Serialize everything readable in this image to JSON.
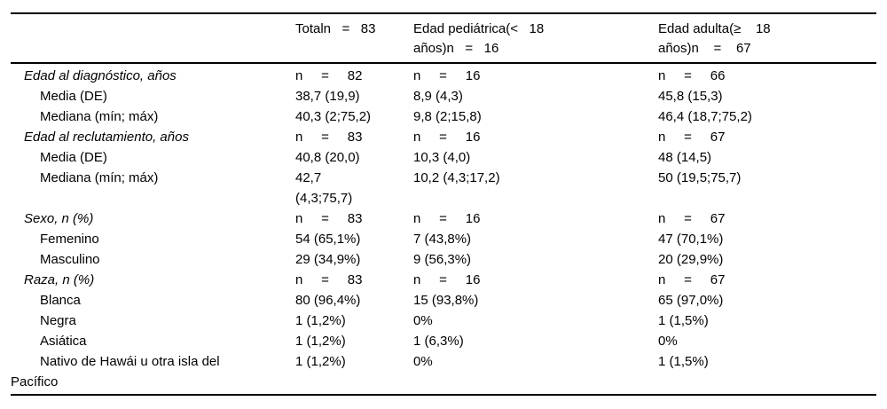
{
  "table": {
    "colors": {
      "text": "#000000",
      "rule": "#000000",
      "background": "#ffffff"
    },
    "columns": [
      "",
      "Totaln   =   83",
      "Edad pediátrica(<   18\naños)n   =   16",
      "Edad adulta(≥    18\naños)n    =    67"
    ],
    "rows": [
      {
        "style": "group",
        "label": "Edad al diagnóstico, años",
        "total": "n     =     82",
        "pediatric": "n     =     16",
        "adult": "n     =     66"
      },
      {
        "style": "sub",
        "label": "Media (DE)",
        "total": "38,7 (19,9)",
        "pediatric": "8,9 (4,3)",
        "adult": "45,8 (15,3)"
      },
      {
        "style": "sub",
        "label": "Mediana (mín; máx)",
        "total": "40,3 (2;75,2)",
        "pediatric": "9,8 (2;15,8)",
        "adult": "46,4 (18,7;75,2)"
      },
      {
        "style": "group",
        "label": "Edad al reclutamiento, años",
        "total": "n     =     83",
        "pediatric": "n     =     16",
        "adult": "n     =     67"
      },
      {
        "style": "sub",
        "label": "Media (DE)",
        "total": "40,8 (20,0)",
        "pediatric": "10,3 (4,0)",
        "adult": "48 (14,5)"
      },
      {
        "style": "sub",
        "label": "Mediana (mín; máx)",
        "total": "42,7\n(4,3;75,7)",
        "pediatric": "10,2 (4,3;17,2)",
        "adult": "50 (19,5;75,7)"
      },
      {
        "style": "group",
        "label": "Sexo, n (%)",
        "total": "n     =     83",
        "pediatric": "n     =     16",
        "adult": "n     =     67"
      },
      {
        "style": "sub",
        "label": "Femenino",
        "total": "54 (65,1%)",
        "pediatric": "7 (43,8%)",
        "adult": "47 (70,1%)"
      },
      {
        "style": "sub",
        "label": "Masculino",
        "total": "29 (34,9%)",
        "pediatric": "9 (56,3%)",
        "adult": "20 (29,9%)"
      },
      {
        "style": "group",
        "label": "Raza, n (%)",
        "total": "n     =     83",
        "pediatric": "n     =     16",
        "adult": "n     =     67"
      },
      {
        "style": "sub",
        "label": "Blanca",
        "total": "80 (96,4%)",
        "pediatric": "15 (93,8%)",
        "adult": "65 (97,0%)"
      },
      {
        "style": "sub",
        "label": "Negra",
        "total": "1 (1,2%)",
        "pediatric": "0%",
        "adult": "1 (1,5%)"
      },
      {
        "style": "sub",
        "label": "Asiática",
        "total": "1 (1,2%)",
        "pediatric": "1 (6,3%)",
        "adult": "0%"
      },
      {
        "style": "sub",
        "label": "Nativo de Hawái u otra isla del\nPacífico",
        "total": "1 (1,2%)",
        "pediatric": "0%",
        "adult": "1 (1,5%)"
      }
    ]
  }
}
